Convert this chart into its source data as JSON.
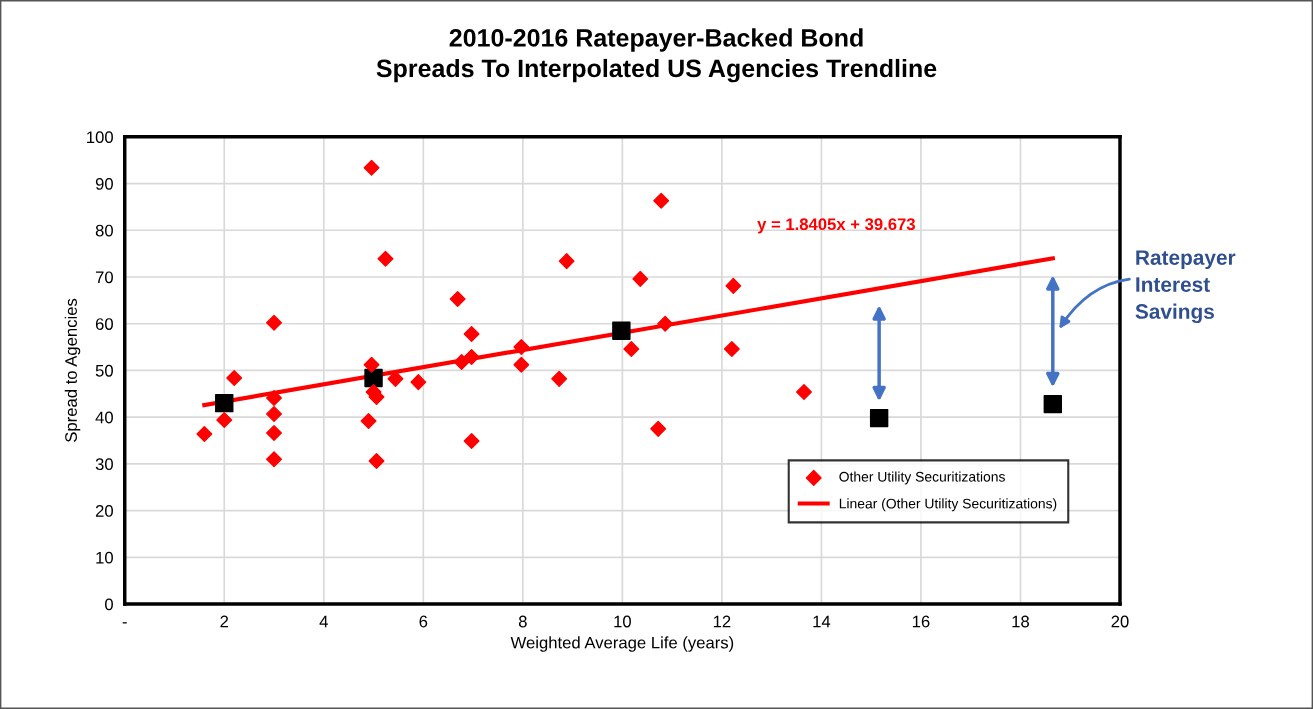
{
  "chart_data": {
    "type": "scatter",
    "title": "2010-2016 Ratepayer-Backed Bond\nSpreads To Interpolated US Agencies Trendline",
    "xlabel": "Weighted Average Life (years)",
    "ylabel": "Spread to Agencies",
    "series": [
      {
        "marker": "square",
        "color": "#000000",
        "x": [
          2.0,
          5.0,
          9.98,
          15.16,
          18.65
        ],
        "values": [
          43.0,
          48.4,
          58.5,
          39.8,
          42.8
        ]
      },
      {
        "marker": "diamond",
        "name": "Other Utility Securitizations",
        "color": "#ff0000",
        "x": [
          1.6,
          2.0,
          2.2,
          3.0,
          3.0,
          3.0,
          3.0,
          3.0,
          4.96,
          4.9,
          4.96,
          5.0,
          5.06,
          5.06,
          5.24,
          5.44,
          5.9,
          6.69,
          6.77,
          6.97,
          6.97,
          6.97,
          7.97,
          7.97,
          8.73,
          8.88,
          10.18,
          10.36,
          10.72,
          10.78,
          10.86,
          12.23,
          12.2,
          13.65
        ],
        "values": [
          36.4,
          39.4,
          48.4,
          60.2,
          44.1,
          40.7,
          36.6,
          31.0,
          93.4,
          39.2,
          51.2,
          45.4,
          44.3,
          30.6,
          73.9,
          48.2,
          47.5,
          65.3,
          51.8,
          57.8,
          52.9,
          34.9,
          55.0,
          51.2,
          48.2,
          73.4,
          54.6,
          69.6,
          37.5,
          86.3,
          60.0,
          68.1,
          54.6,
          45.4
        ]
      },
      {
        "type": "line",
        "marker": "none",
        "line_style": "solid",
        "name": "Linear (Other Utility Securitizations)",
        "color": "#ff0000",
        "x": [
          1.6,
          18.65
        ],
        "values": [
          42.6,
          74.0
        ]
      }
    ],
    "annotations": [
      "y = 1.8405x + 39.673",
      "Ratepayer\nInterest\nSavings"
    ],
    "xlim": [
      0,
      20
    ],
    "xticks": [
      {
        "value": 0,
        "label": "-"
      },
      2,
      4,
      6,
      8,
      10,
      12,
      14,
      16,
      18,
      20
    ],
    "ylim": [
      0,
      100
    ],
    "yticks": [
      0,
      10,
      20,
      30,
      40,
      50,
      60,
      70,
      80,
      90,
      100
    ],
    "grid": true,
    "legend": "bottom right"
  }
}
